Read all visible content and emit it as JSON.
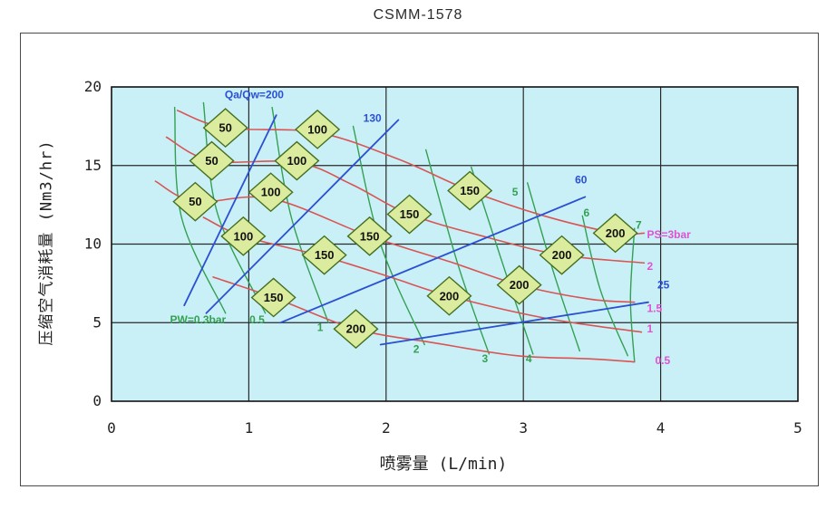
{
  "title": "CSMM-1578",
  "chart_data": {
    "type": "line",
    "title": "CSMM-1578",
    "xlabel": "喷雾量 (L/min)",
    "ylabel": "压缩空气消耗量 (Nm3/hr)",
    "xlim": [
      0,
      5
    ],
    "ylim": [
      0,
      20
    ],
    "x_ticks": [
      0,
      1,
      2,
      3,
      4,
      5
    ],
    "y_ticks": [
      0,
      5,
      10,
      15,
      20
    ],
    "grid": true,
    "legend_position": "none",
    "plot_bg": "#c9f0f6",
    "grid_color": "#2a2a2a",
    "curve_groups": [
      {
        "name": "water-pressure-green",
        "meaning": "constant water pressure PW (bar)",
        "color": "#33a052",
        "label_color": "#33a052",
        "width": 1.4,
        "curves": [
          {
            "label": "PW=0.3bar",
            "label_pos": [
              0.63,
              5.2
            ],
            "label_anchor": "middle",
            "points": [
              [
                0.46,
                18.7
              ],
              [
                0.51,
                11.7
              ],
              [
                0.83,
                5.6
              ]
            ]
          },
          {
            "label": "0.5",
            "label_pos": [
              1.06,
              5.2
            ],
            "label_anchor": "middle",
            "points": [
              [
                0.67,
                19.0
              ],
              [
                0.77,
                12.0
              ],
              [
                1.12,
                5.6
              ]
            ]
          },
          {
            "label": "1",
            "label_pos": [
              1.52,
              4.7
            ],
            "label_anchor": "middle",
            "points": [
              [
                1.17,
                18.7
              ],
              [
                1.31,
                11.7
              ],
              [
                1.58,
                5.0
              ]
            ]
          },
          {
            "label": "2",
            "label_pos": [
              2.22,
              3.3
            ],
            "label_anchor": "middle",
            "points": [
              [
                1.76,
                17.5
              ],
              [
                1.96,
                10.0
              ],
              [
                2.28,
                3.6
              ]
            ]
          },
          {
            "label": "3",
            "label_pos": [
              2.72,
              2.7
            ],
            "label_anchor": "middle",
            "points": [
              [
                2.29,
                16.0
              ],
              [
                2.52,
                8.8
              ],
              [
                2.75,
                3.0
              ]
            ]
          },
          {
            "label": "4",
            "label_pos": [
              3.04,
              2.7
            ],
            "label_anchor": "middle",
            "points": [
              [
                2.62,
                14.9
              ],
              [
                2.87,
                8.2
              ],
              [
                3.07,
                3.0
              ]
            ]
          },
          {
            "label": "5",
            "label_pos": [
              2.94,
              13.3
            ],
            "label_anchor": "middle",
            "points": [
              [
                3.03,
                13.9
              ],
              [
                3.22,
                8.2
              ],
              [
                3.41,
                3.2
              ]
            ]
          },
          {
            "label": "6",
            "label_pos": [
              3.46,
              12.0
            ],
            "label_anchor": "middle",
            "points": [
              [
                3.43,
                11.8
              ],
              [
                3.56,
                7.1
              ],
              [
                3.76,
                2.9
              ]
            ]
          },
          {
            "label": "7",
            "label_pos": [
              3.84,
              11.2
            ],
            "label_anchor": "middle",
            "points": [
              [
                3.81,
                11.0
              ],
              [
                3.78,
                6.5
              ],
              [
                3.81,
                2.5
              ]
            ]
          }
        ]
      },
      {
        "name": "air-pressure-red",
        "meaning": "constant air pressure PS (bar)",
        "color": "#d95454",
        "label_color": "#e051d4",
        "width": 1.6,
        "curves": [
          {
            "label": "PS=3bar",
            "label_pos": [
              3.9,
              10.6
            ],
            "label_anchor": "start",
            "points": [
              [
                0.48,
                18.5
              ],
              [
                0.83,
                17.4
              ],
              [
                1.5,
                17.1
              ],
              [
                2.09,
                15.4
              ],
              [
                2.61,
                13.4
              ],
              [
                3.15,
                11.8
              ],
              [
                3.67,
                10.7
              ],
              [
                3.88,
                10.7
              ]
            ]
          },
          {
            "label": "2",
            "label_pos": [
              3.9,
              8.6
            ],
            "label_anchor": "start",
            "points": [
              [
                0.4,
                16.8
              ],
              [
                0.73,
                15.3
              ],
              [
                1.35,
                15.2
              ],
              [
                1.75,
                13.8
              ],
              [
                2.17,
                11.9
              ],
              [
                2.75,
                10.4
              ],
              [
                3.28,
                9.3
              ],
              [
                3.88,
                8.8
              ]
            ]
          },
          {
            "label": "1.5",
            "label_pos": [
              3.9,
              5.9
            ],
            "label_anchor": "start",
            "points": [
              [
                0.32,
                14.0
              ],
              [
                0.61,
                12.7
              ],
              [
                1.16,
                12.9
              ],
              [
                1.88,
                10.5
              ],
              [
                2.49,
                8.8
              ],
              [
                2.97,
                7.4
              ],
              [
                3.48,
                6.5
              ],
              [
                3.81,
                6.3
              ]
            ]
          },
          {
            "label": "1",
            "label_pos": [
              3.9,
              4.6
            ],
            "label_anchor": "start",
            "points": [
              [
                0.67,
                11.7
              ],
              [
                0.96,
                10.5
              ],
              [
                1.55,
                9.2
              ],
              [
                2.03,
                7.9
              ],
              [
                2.46,
                6.7
              ],
              [
                3.15,
                5.3
              ],
              [
                3.86,
                4.4
              ]
            ]
          },
          {
            "label": "0.5",
            "label_pos": [
              3.96,
              2.6
            ],
            "label_anchor": "start",
            "points": [
              [
                0.74,
                7.9
              ],
              [
                1.18,
                6.6
              ],
              [
                1.78,
                4.6
              ],
              [
                2.36,
                3.7
              ],
              [
                2.95,
                2.9
              ],
              [
                3.48,
                2.7
              ],
              [
                3.81,
                2.5
              ]
            ]
          }
        ]
      },
      {
        "name": "air-water-ratio-blue",
        "meaning": "constant air/water ratio Qa/Qw",
        "color": "#2b50d4",
        "label_color": "#2b50d4",
        "width": 1.8,
        "curves": [
          {
            "label": "Qa/Qw=200",
            "label_pos": [
              1.04,
              19.5
            ],
            "label_anchor": "middle",
            "points": [
              [
                0.53,
                6.1
              ],
              [
                1.2,
                18.2
              ]
            ]
          },
          {
            "label": "130",
            "label_pos": [
              1.9,
              18.0
            ],
            "label_anchor": "middle",
            "points": [
              [
                0.69,
                5.6
              ],
              [
                2.09,
                17.9
              ]
            ]
          },
          {
            "label": "60",
            "label_pos": [
              3.42,
              14.1
            ],
            "label_anchor": "middle",
            "points": [
              [
                1.23,
                5.0
              ],
              [
                3.45,
                13.0
              ]
            ]
          },
          {
            "label": "25",
            "label_pos": [
              4.02,
              7.4
            ],
            "label_anchor": "middle",
            "points": [
              [
                1.96,
                3.6
              ],
              [
                3.91,
                6.3
              ]
            ]
          }
        ]
      }
    ],
    "markers": {
      "shape": "diamond",
      "fill": "#dcec9e",
      "stroke": "#456f1f",
      "series": [
        {
          "label": "50",
          "points": [
            [
              0.83,
              17.4
            ],
            [
              0.73,
              15.3
            ],
            [
              0.61,
              12.7
            ]
          ]
        },
        {
          "label": "100",
          "points": [
            [
              1.5,
              17.3
            ],
            [
              1.35,
              15.3
            ],
            [
              1.16,
              13.3
            ],
            [
              0.96,
              10.5
            ]
          ]
        },
        {
          "label": "150",
          "points": [
            [
              2.61,
              13.4
            ],
            [
              2.17,
              11.9
            ],
            [
              1.88,
              10.5
            ],
            [
              1.55,
              9.3
            ],
            [
              1.18,
              6.6
            ]
          ]
        },
        {
          "label": "200",
          "points": [
            [
              3.67,
              10.7
            ],
            [
              3.28,
              9.3
            ],
            [
              2.97,
              7.4
            ],
            [
              2.46,
              6.7
            ],
            [
              1.78,
              4.6
            ]
          ]
        }
      ]
    }
  }
}
